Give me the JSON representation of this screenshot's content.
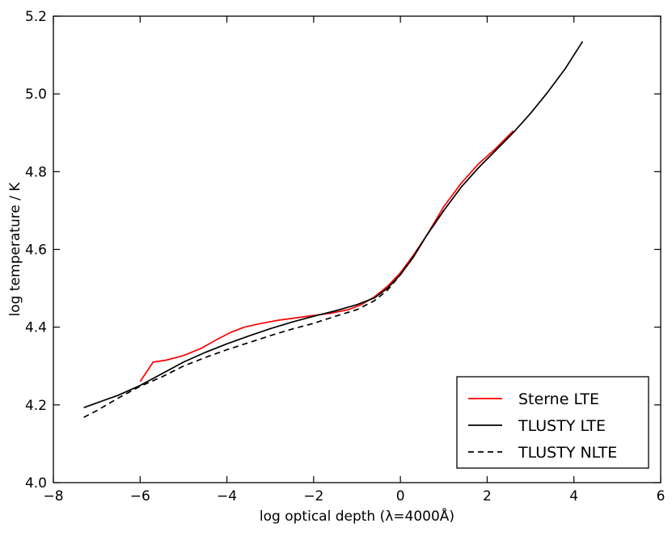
{
  "chart_data": {
    "type": "line",
    "title": "",
    "xlabel": "log optical depth (λ=4000Å)",
    "ylabel": "log temperature / K",
    "xlim": [
      -8,
      6
    ],
    "ylim": [
      4.0,
      5.2
    ],
    "xticks": [
      -8,
      -6,
      -4,
      -2,
      0,
      2,
      4,
      6
    ],
    "yticks": [
      4.0,
      4.2,
      4.4,
      4.6,
      4.8,
      5.0,
      5.2
    ],
    "xtick_labels": [
      "−8",
      "−6",
      "−4",
      "−2",
      "0",
      "2",
      "4",
      "6"
    ],
    "ytick_labels": [
      "4.0",
      "4.2",
      "4.4",
      "4.6",
      "4.8",
      "5.0",
      "5.2"
    ],
    "grid": false,
    "legend_position": "bottom-right",
    "series": [
      {
        "name": "Sterne LTE",
        "color": "#ff0000",
        "style": "solid",
        "x": [
          -6.0,
          -5.7,
          -5.4,
          -5.0,
          -4.6,
          -4.2,
          -3.9,
          -3.6,
          -3.2,
          -2.8,
          -2.4,
          -2.0,
          -1.6,
          -1.2,
          -0.9,
          -0.6,
          -0.3,
          0.0,
          0.3,
          0.6,
          1.0,
          1.4,
          1.8,
          2.2,
          2.6
        ],
        "y": [
          4.26,
          4.31,
          4.315,
          4.327,
          4.345,
          4.37,
          4.387,
          4.4,
          4.41,
          4.418,
          4.424,
          4.43,
          4.436,
          4.445,
          4.458,
          4.478,
          4.505,
          4.54,
          4.585,
          4.635,
          4.71,
          4.77,
          4.82,
          4.86,
          4.905
        ]
      },
      {
        "name": "TLUSTY LTE",
        "color": "#000000",
        "style": "solid",
        "x": [
          -7.3,
          -7.0,
          -6.5,
          -6.0,
          -5.5,
          -5.0,
          -4.5,
          -4.0,
          -3.5,
          -3.0,
          -2.5,
          -2.0,
          -1.5,
          -1.0,
          -0.6,
          -0.3,
          0.0,
          0.3,
          0.6,
          1.0,
          1.4,
          1.8,
          2.2,
          2.6,
          3.0,
          3.4,
          3.8,
          4.2
        ],
        "y": [
          4.193,
          4.205,
          4.225,
          4.25,
          4.28,
          4.31,
          4.335,
          4.357,
          4.377,
          4.396,
          4.413,
          4.428,
          4.442,
          4.458,
          4.475,
          4.5,
          4.535,
          4.58,
          4.635,
          4.7,
          4.76,
          4.81,
          4.855,
          4.9,
          4.95,
          5.005,
          5.065,
          5.135
        ]
      },
      {
        "name": "TLUSTY NLTE",
        "color": "#000000",
        "style": "dashed",
        "x": [
          -7.3,
          -7.0,
          -6.5,
          -6.0,
          -5.5,
          -5.0,
          -4.5,
          -4.0,
          -3.5,
          -3.0,
          -2.5,
          -2.0,
          -1.5,
          -1.0,
          -0.6,
          -0.3,
          0.0,
          0.3,
          0.6,
          1.0
        ],
        "y": [
          4.168,
          4.185,
          4.218,
          4.248,
          4.272,
          4.3,
          4.322,
          4.342,
          4.36,
          4.378,
          4.395,
          4.41,
          4.428,
          4.445,
          4.468,
          4.495,
          4.535,
          4.582,
          4.635,
          4.7
        ]
      }
    ]
  }
}
